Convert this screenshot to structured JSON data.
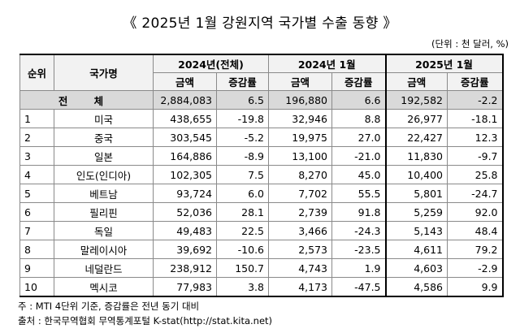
{
  "title": "《 2025년 1월 강원지역 국가별 수출 동향 》",
  "unit": "(단위 : 천 달러, %)",
  "headers": {
    "rank": "순위",
    "country": "국가명",
    "period1": "2024년(전체)",
    "period2": "2024년 1월",
    "period3": "2025년 1월",
    "amount": "금액",
    "rate": "증감률"
  },
  "total": {
    "label": "전 체",
    "p1_amount": "2,884,083",
    "p1_rate": "6.5",
    "p2_amount": "196,880",
    "p2_rate": "6.6",
    "p3_amount": "192,582",
    "p3_rate": "-2.2"
  },
  "rows": [
    {
      "rank": "1",
      "country": "미국",
      "p1_amount": "438,655",
      "p1_rate": "-19.8",
      "p2_amount": "32,946",
      "p2_rate": "8.8",
      "p3_amount": "26,977",
      "p3_rate": "-18.1"
    },
    {
      "rank": "2",
      "country": "중국",
      "p1_amount": "303,545",
      "p1_rate": "-5.2",
      "p2_amount": "19,975",
      "p2_rate": "27.0",
      "p3_amount": "22,427",
      "p3_rate": "12.3"
    },
    {
      "rank": "3",
      "country": "일본",
      "p1_amount": "164,886",
      "p1_rate": "-8.9",
      "p2_amount": "13,100",
      "p2_rate": "-21.0",
      "p3_amount": "11,830",
      "p3_rate": "-9.7"
    },
    {
      "rank": "4",
      "country": "인도(인디아)",
      "p1_amount": "102,305",
      "p1_rate": "7.5",
      "p2_amount": "8,270",
      "p2_rate": "45.0",
      "p3_amount": "10,400",
      "p3_rate": "25.8"
    },
    {
      "rank": "5",
      "country": "베트남",
      "p1_amount": "93,724",
      "p1_rate": "6.0",
      "p2_amount": "7,702",
      "p2_rate": "55.5",
      "p3_amount": "5,801",
      "p3_rate": "-24.7"
    },
    {
      "rank": "6",
      "country": "필리핀",
      "p1_amount": "52,036",
      "p1_rate": "28.1",
      "p2_amount": "2,739",
      "p2_rate": "91.8",
      "p3_amount": "5,259",
      "p3_rate": "92.0"
    },
    {
      "rank": "7",
      "country": "독일",
      "p1_amount": "49,483",
      "p1_rate": "22.5",
      "p2_amount": "3,466",
      "p2_rate": "-24.3",
      "p3_amount": "5,143",
      "p3_rate": "48.4"
    },
    {
      "rank": "8",
      "country": "말레이시아",
      "p1_amount": "39,692",
      "p1_rate": "-10.6",
      "p2_amount": "2,573",
      "p2_rate": "-23.5",
      "p3_amount": "4,611",
      "p3_rate": "79.2"
    },
    {
      "rank": "9",
      "country": "네덜란드",
      "p1_amount": "238,912",
      "p1_rate": "150.7",
      "p2_amount": "4,743",
      "p2_rate": "1.9",
      "p3_amount": "4,603",
      "p3_rate": "-2.9"
    },
    {
      "rank": "10",
      "country": "멕시코",
      "p1_amount": "77,983",
      "p1_rate": "3.8",
      "p2_amount": "4,173",
      "p2_rate": "-47.5",
      "p3_amount": "4,586",
      "p3_rate": "9.9"
    }
  ],
  "notes": {
    "note": "주 : MTI 4단위 기준, 증감률은 전년 동기 대비",
    "source": "출처 : 한국무역협회 무역통계포털 K-stat(http://stat.kita.net)"
  }
}
